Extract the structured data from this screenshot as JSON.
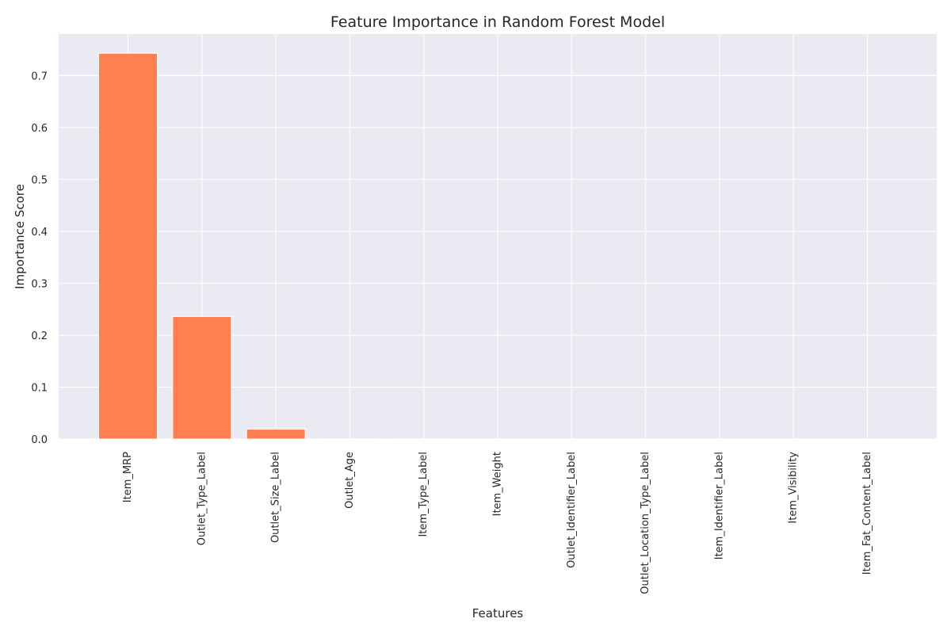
{
  "chart_data": {
    "type": "bar",
    "title": "Feature Importance in Random Forest Model",
    "xlabel": "Features",
    "ylabel": "Importance Score",
    "categories": [
      "Item_MRP",
      "Outlet_Type_Label",
      "Outlet_Size_Label",
      "Outlet_Age",
      "Item_Type_Label",
      "Item_Weight",
      "Outlet_Identifier_Label",
      "Outlet_Location_Type_Label",
      "Item_Identifier_Label",
      "Item_Visibility",
      "Item_Fat_Content_Label"
    ],
    "values": [
      0.743,
      0.236,
      0.019,
      0.0005,
      0.0003,
      0.0002,
      0.0002,
      0.0001,
      0.0001,
      0.0001,
      0.0001
    ],
    "ylim": [
      0,
      0.78
    ],
    "yticks": [
      "0.0",
      "0.1",
      "0.2",
      "0.3",
      "0.4",
      "0.5",
      "0.6",
      "0.7"
    ],
    "grid": true,
    "legend": "none",
    "colors": {
      "bar": "#ff7f50",
      "plot_background": "#eaeaf2",
      "grid": "#ffffff",
      "text": "#262626"
    }
  }
}
